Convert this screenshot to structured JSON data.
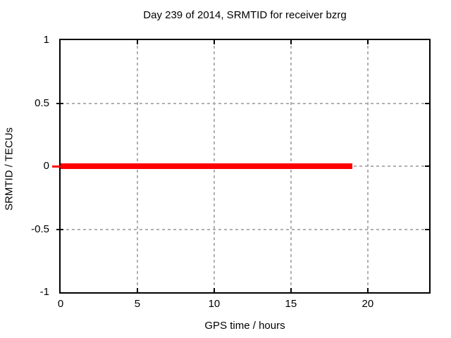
{
  "chart_data": {
    "type": "line",
    "title": "Day 239 of 2014, SRMTID for receiver bzrg",
    "xlabel": "GPS time / hours",
    "ylabel": "SRMTID / TECUs",
    "xlim": [
      0,
      24
    ],
    "ylim": [
      -1,
      1
    ],
    "xticks": [
      0,
      5,
      10,
      15,
      20
    ],
    "xtick_labels": [
      "0",
      "5",
      "10",
      "15",
      "20"
    ],
    "yticks": [
      1,
      0.5,
      0,
      -0.5,
      -1
    ],
    "ytick_labels": [
      "1",
      "0.5",
      "0",
      "-0.5",
      "-1"
    ],
    "grid": true,
    "grid_style": "dashed",
    "legend": false,
    "series": [
      {
        "name": "SRMTID",
        "color": "#ff0000",
        "line_width": 8,
        "points": [
          [
            0,
            0
          ],
          [
            19,
            0
          ]
        ]
      }
    ],
    "colors": {
      "background": "#ffffff",
      "border": "#000000",
      "grid": "#b0b0b0",
      "series": "#ff0000",
      "text": "#000000"
    }
  }
}
